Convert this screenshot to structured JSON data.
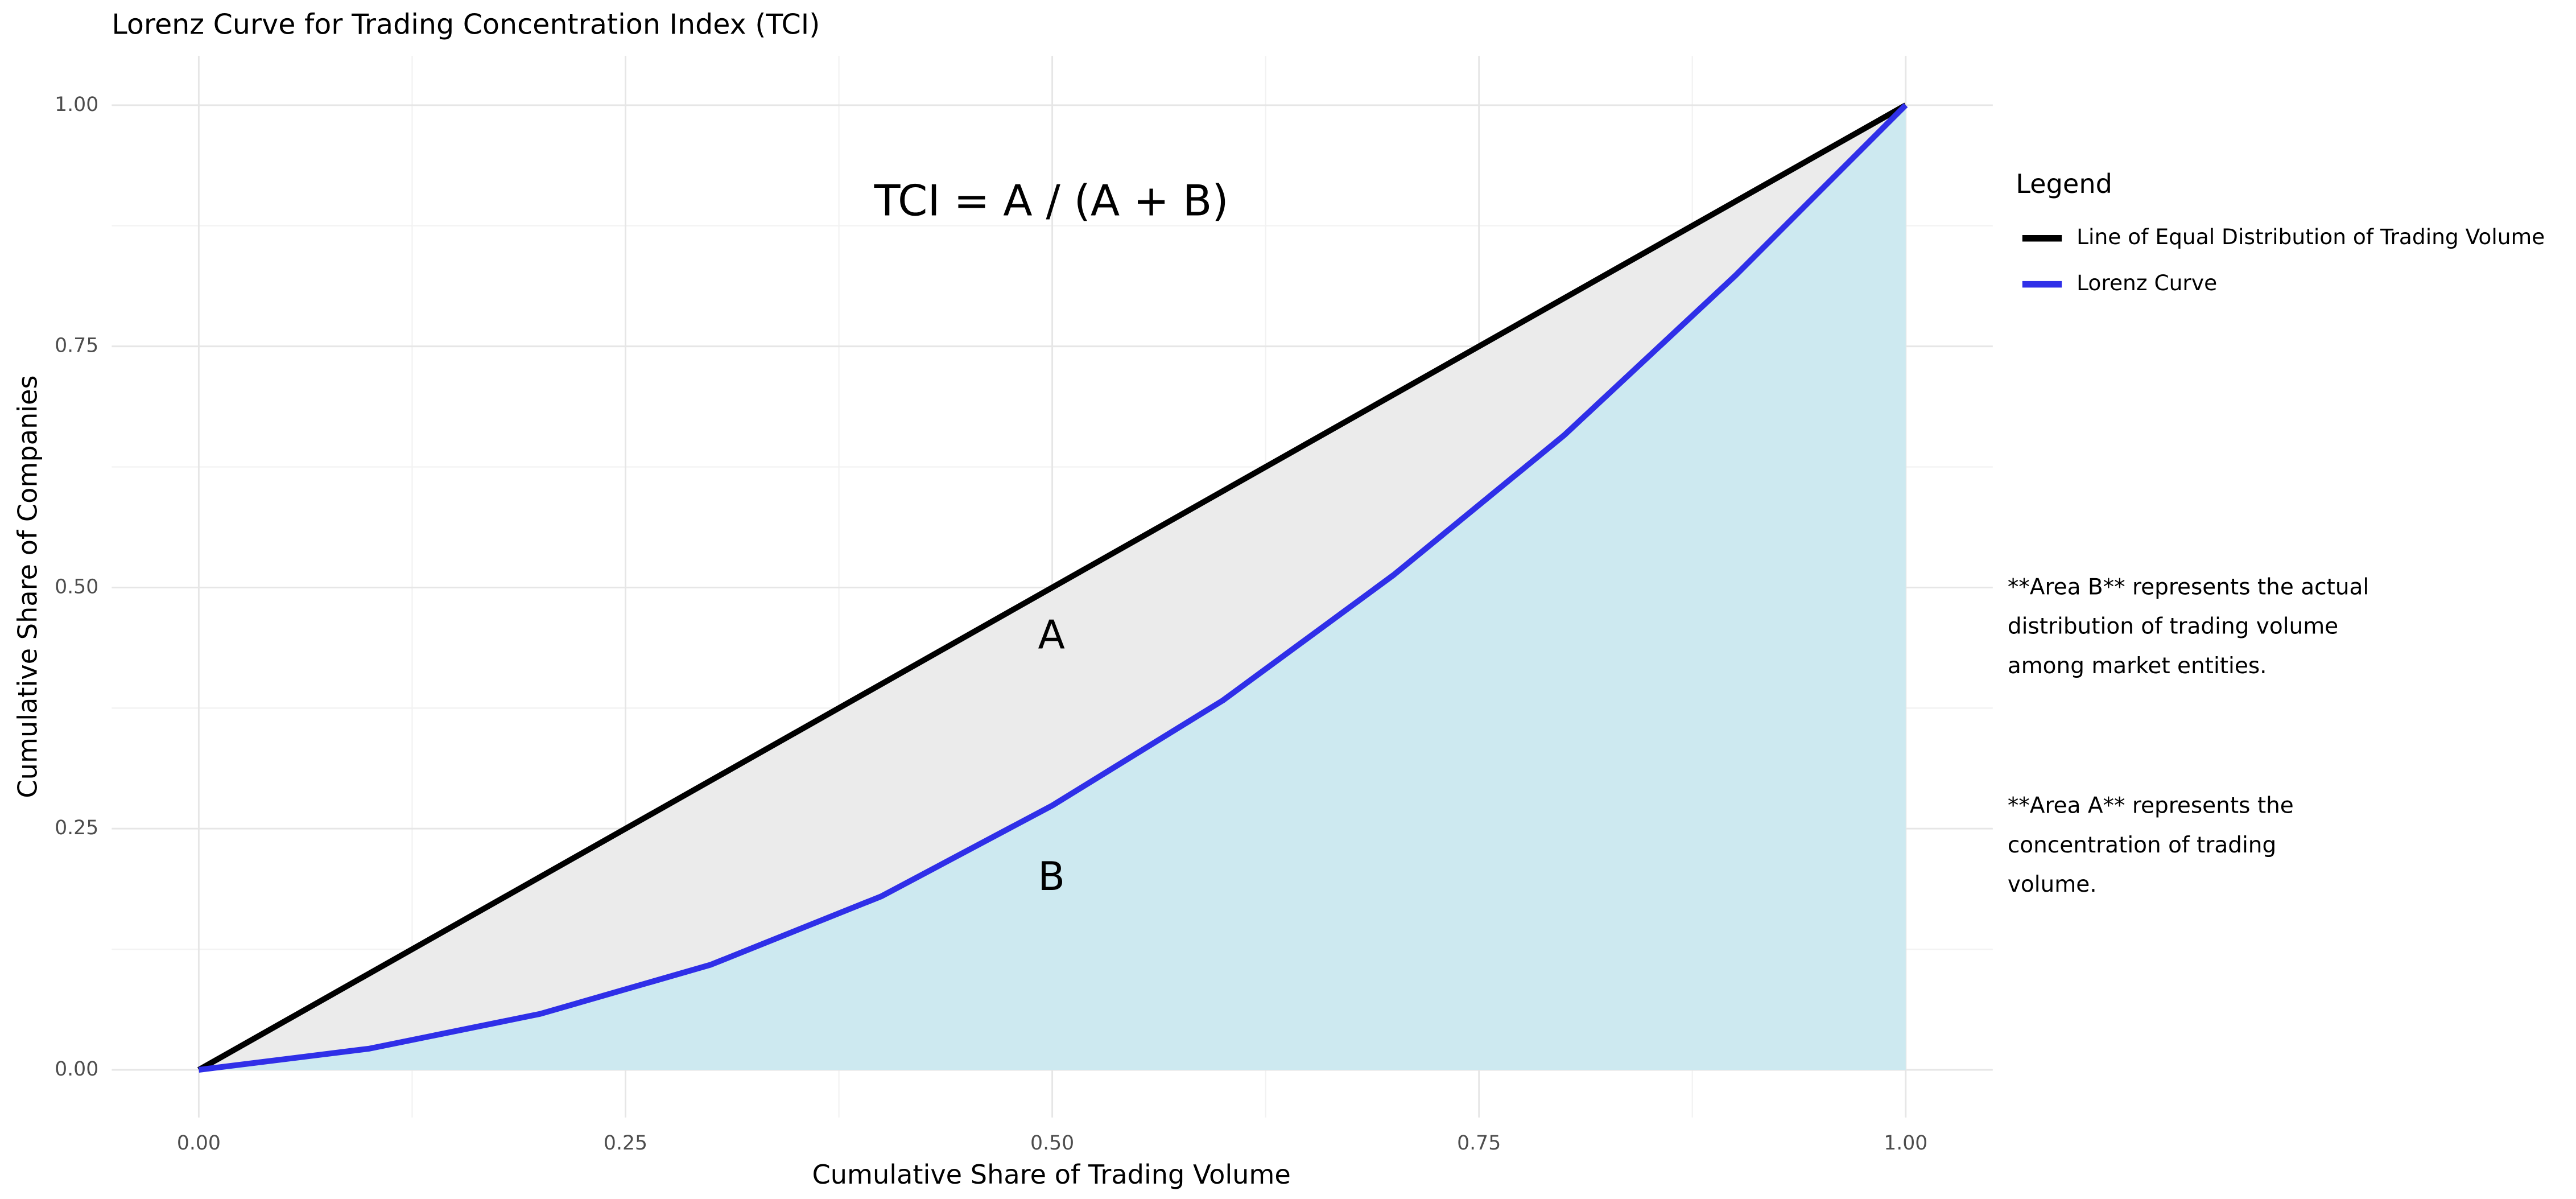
{
  "chart_data": {
    "type": "line",
    "title": "Lorenz Curve for Trading Concentration Index (TCI)",
    "x_label": "Cumulative Share of Trading Volume",
    "y_label": "Cumulative Share of Companies",
    "xlim": [
      0,
      1
    ],
    "ylim": [
      0,
      1
    ],
    "xticks": [
      {
        "value": 0,
        "label": "0.00"
      },
      {
        "value": 0.25,
        "label": "0.25"
      },
      {
        "value": 0.5,
        "label": "0.50"
      },
      {
        "value": 0.75,
        "label": "0.75"
      },
      {
        "value": 1,
        "label": "1.00"
      }
    ],
    "yticks": [
      {
        "value": 0,
        "label": "0.00"
      },
      {
        "value": 0.25,
        "label": "0.25"
      },
      {
        "value": 0.5,
        "label": "0.50"
      },
      {
        "value": 0.75,
        "label": "0.75"
      },
      {
        "value": 1,
        "label": "1.00"
      }
    ],
    "grid": true,
    "legend_title": "Legend",
    "series": [
      {
        "name": "Line of Equal Distribution of Trading Volume",
        "color": "#000000",
        "fill": "#ebebeb",
        "x": [
          0,
          1
        ],
        "values": [
          0,
          1
        ]
      },
      {
        "name": "Lorenz Curve",
        "color": "#2f2fe8",
        "fill": "#cde9f0",
        "x": [
          0,
          0.1,
          0.2,
          0.3,
          0.4,
          0.5,
          0.6,
          0.7,
          0.8,
          0.9,
          1
        ],
        "values": [
          0,
          0.022,
          0.058,
          0.109,
          0.18,
          0.274,
          0.383,
          0.513,
          0.658,
          0.823,
          1
        ]
      }
    ],
    "annotations": [
      "TCI = A / (A + B)",
      "A",
      "B"
    ],
    "notes": [
      [
        "**Area B** represents the actual",
        "distribution of trading volume",
        "among market entities."
      ],
      [
        "**Area A** represents the",
        "concentration of trading",
        "volume."
      ]
    ]
  }
}
